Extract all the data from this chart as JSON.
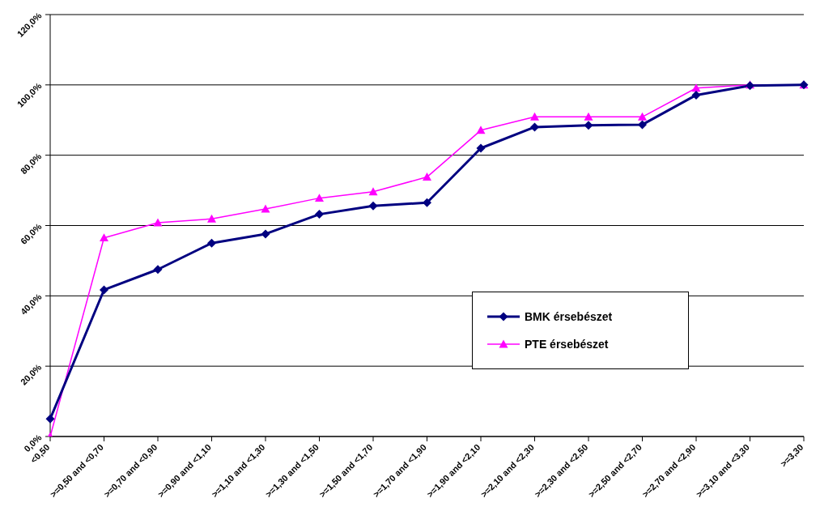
{
  "chart_data": {
    "type": "line",
    "categories": [
      "<0,50",
      ">=0,50 and <0,70",
      ">=0,70 and <0,90",
      ">=0,90 and <1,10",
      ">=1,10 and <1,30",
      ">=1,30 and <1,50",
      ">=1,50 and <1,70",
      ">=1,70 and <1,90",
      ">=1,90 and <2,10",
      ">=2,10 and <2,30",
      ">=2,30 and <2,50",
      ">=2,50 and <2,70",
      ">=2,70 and <2,90",
      ">=3,10 and <3,30",
      ">=3,30"
    ],
    "series": [
      {
        "name": "BMK érsebészet",
        "color": "#000080",
        "marker": "diamond",
        "values": [
          5,
          41.7,
          47.5,
          55,
          57.6,
          63.2,
          65.6,
          66.5,
          82,
          88,
          88.5,
          88.7,
          97.1,
          99.8,
          100
        ]
      },
      {
        "name": "PTE érsebészet",
        "color": "#ff00ff",
        "marker": "triangle",
        "values": [
          0,
          56.5,
          60.8,
          61.9,
          64.7,
          67.8,
          69.6,
          73.8,
          87.1,
          90.9,
          90.9,
          90.9,
          99.1,
          100,
          100
        ]
      }
    ],
    "ylim": [
      0,
      120
    ],
    "yticks": [
      {
        "value": 0,
        "label": "0,0%"
      },
      {
        "value": 20,
        "label": "20,0%"
      },
      {
        "value": 40,
        "label": "40,0%"
      },
      {
        "value": 60,
        "label": "60,0%"
      },
      {
        "value": 80,
        "label": "80,0%"
      },
      {
        "value": 100,
        "label": "100,0%"
      },
      {
        "value": 120,
        "label": "120,0%"
      }
    ],
    "grid": "y",
    "legend": "right",
    "line_style": "solid"
  }
}
